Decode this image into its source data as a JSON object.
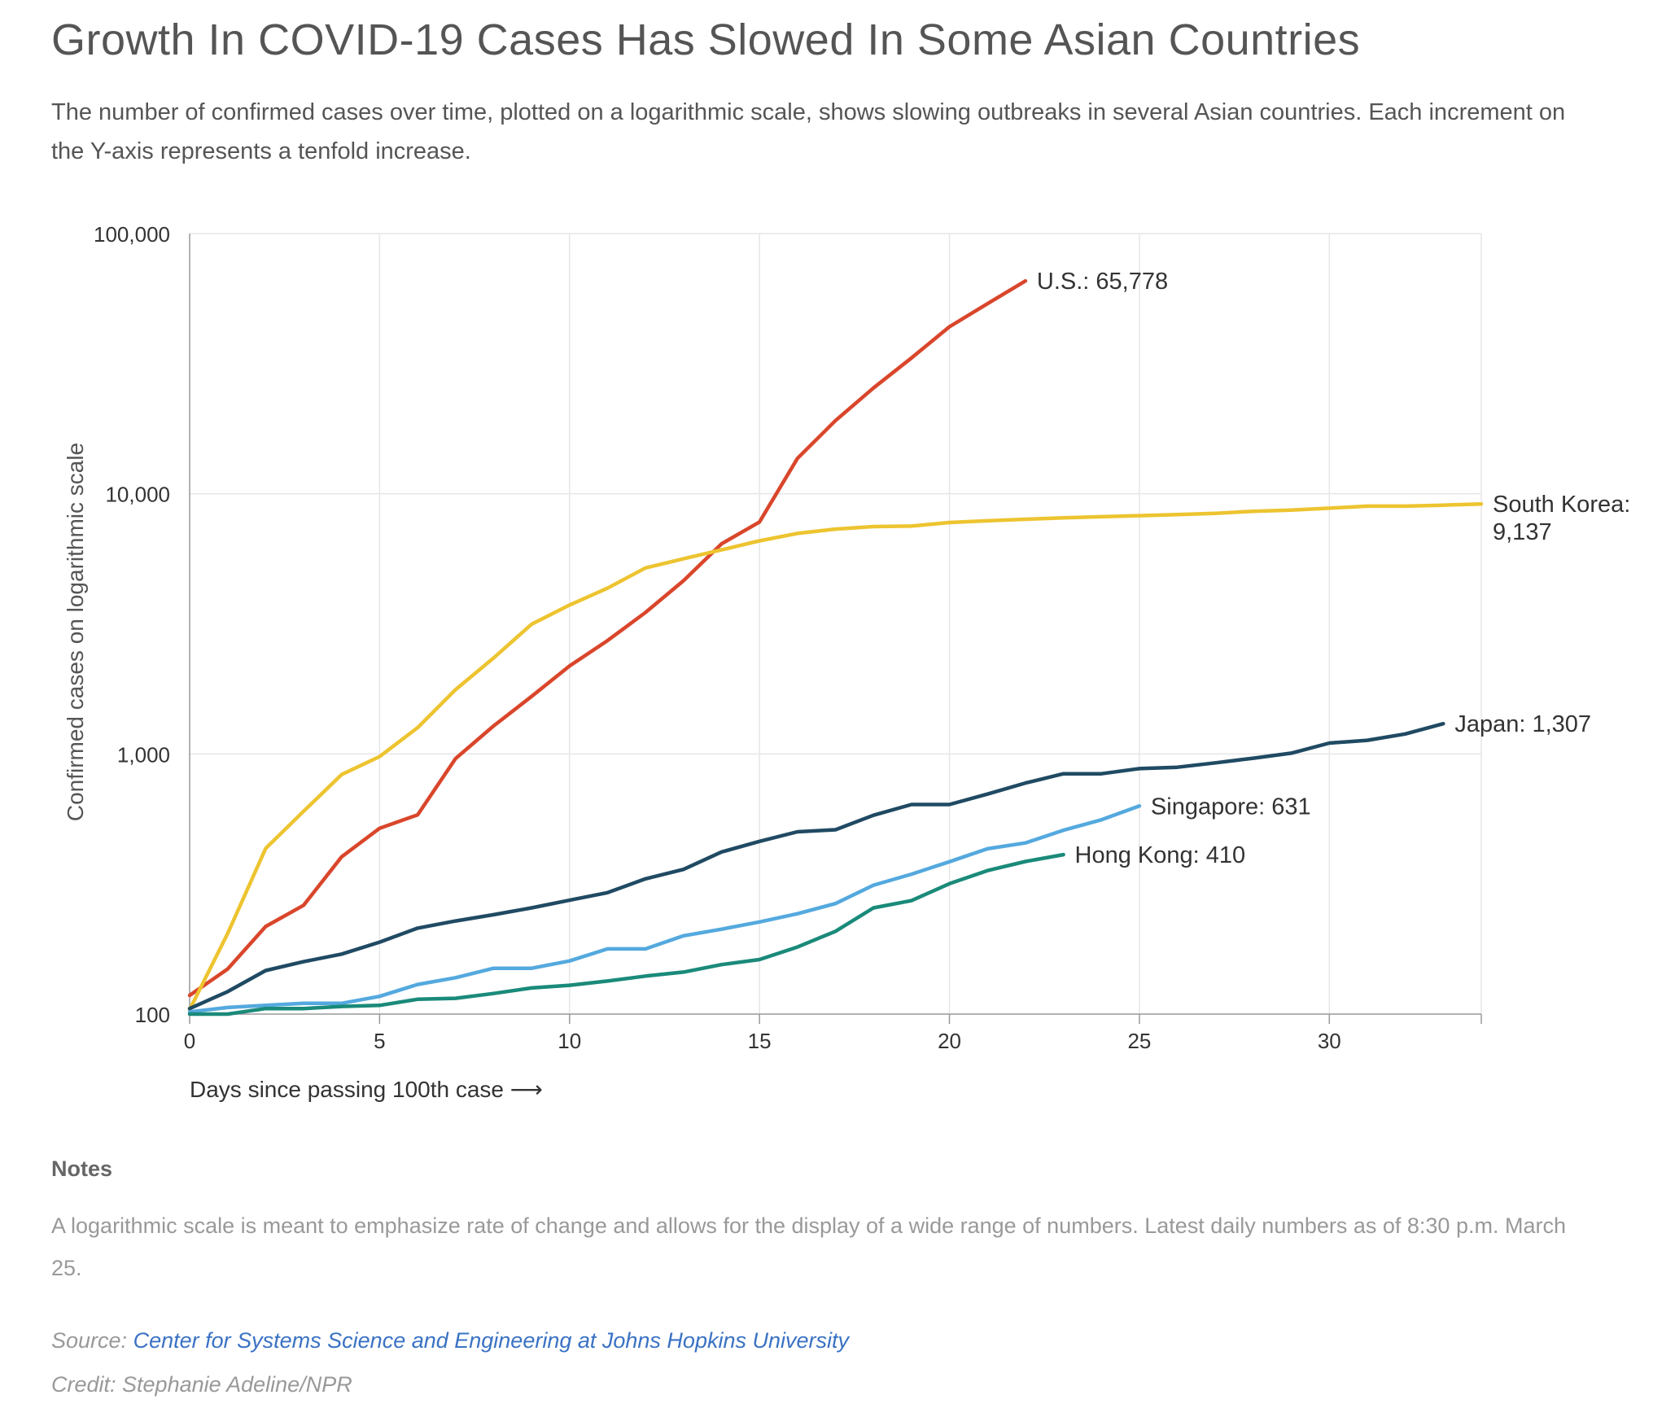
{
  "title": "Growth In COVID-19 Cases Has Slowed In Some Asian Countries",
  "subtitle": "The number of confirmed cases over time, plotted on a logarithmic scale, shows slowing outbreaks in several Asian countries. Each increment on the Y-axis represents a tenfold increase.",
  "notes": {
    "heading": "Notes",
    "text": "A logarithmic scale is meant to emphasize rate of change and allows for the display of a wide range of numbers. Latest daily numbers as of 8:30 p.m. March 25."
  },
  "source": {
    "label": "Source:",
    "link_text": "Center for Systems Science and Engineering at Johns Hopkins University"
  },
  "credit": "Credit: Stephanie Adeline/NPR",
  "chart_data": {
    "type": "line",
    "yscale": "log",
    "xlabel": "Days since passing 100th case ⟶",
    "ylabel": "Confirmed cases on logarithmic scale",
    "xlim": [
      0,
      34
    ],
    "ylim": [
      100,
      100000
    ],
    "x_ticks": [
      0,
      5,
      10,
      15,
      20,
      25,
      30
    ],
    "y_ticks": [
      100,
      1000,
      10000,
      100000
    ],
    "y_tick_labels": [
      "100",
      "1,000",
      "10,000",
      "100,000"
    ],
    "grid": true,
    "series": [
      {
        "name": "U.S.",
        "color": "#d9462b",
        "end_label": "U.S.: 65,778",
        "values": [
          118,
          149,
          217,
          262,
          402,
          518,
          583,
          959,
          1281,
          1663,
          2179,
          2727,
          3499,
          4632,
          6421,
          7786,
          13680,
          19101,
          25493,
          33276,
          43847,
          53740,
          65778
        ]
      },
      {
        "name": "South Korea",
        "color": "#edc430",
        "end_label": "South Korea: 9,137",
        "values": [
          104,
          204,
          433,
          602,
          833,
          977,
          1261,
          1766,
          2337,
          3150,
          3736,
          4335,
          5186,
          5621,
          6088,
          6593,
          7041,
          7314,
          7478,
          7513,
          7755,
          7869,
          7979,
          8086,
          8162,
          8236,
          8320,
          8413,
          8565,
          8652,
          8799,
          8961,
          8961,
          9037,
          9137
        ]
      },
      {
        "name": "Japan",
        "color": "#204a63",
        "end_label": "Japan: 1,307",
        "values": [
          105,
          122,
          147,
          159,
          170,
          189,
          214,
          228,
          241,
          256,
          274,
          293,
          331,
          360,
          420,
          461,
          502,
          511,
          581,
          639,
          639,
          701,
          773,
          839,
          839,
          878,
          889,
          924,
          963,
          1007,
          1101,
          1128,
          1193,
          1307
        ]
      },
      {
        "name": "Singapore",
        "color": "#54a9de",
        "end_label": "Singapore: 631",
        "values": [
          102,
          106,
          108,
          110,
          110,
          117,
          130,
          138,
          150,
          150,
          160,
          178,
          178,
          200,
          212,
          226,
          243,
          266,
          313,
          345,
          385,
          432,
          455,
          509,
          558,
          631
        ]
      },
      {
        "name": "Hong Kong",
        "color": "#1a8a7a",
        "end_label": "Hong Kong: 410",
        "values": [
          100,
          100,
          105,
          105,
          107,
          108,
          114,
          115,
          120,
          126,
          129,
          134,
          140,
          145,
          155,
          162,
          181,
          208,
          256,
          273,
          317,
          356,
          386,
          410
        ]
      }
    ]
  }
}
